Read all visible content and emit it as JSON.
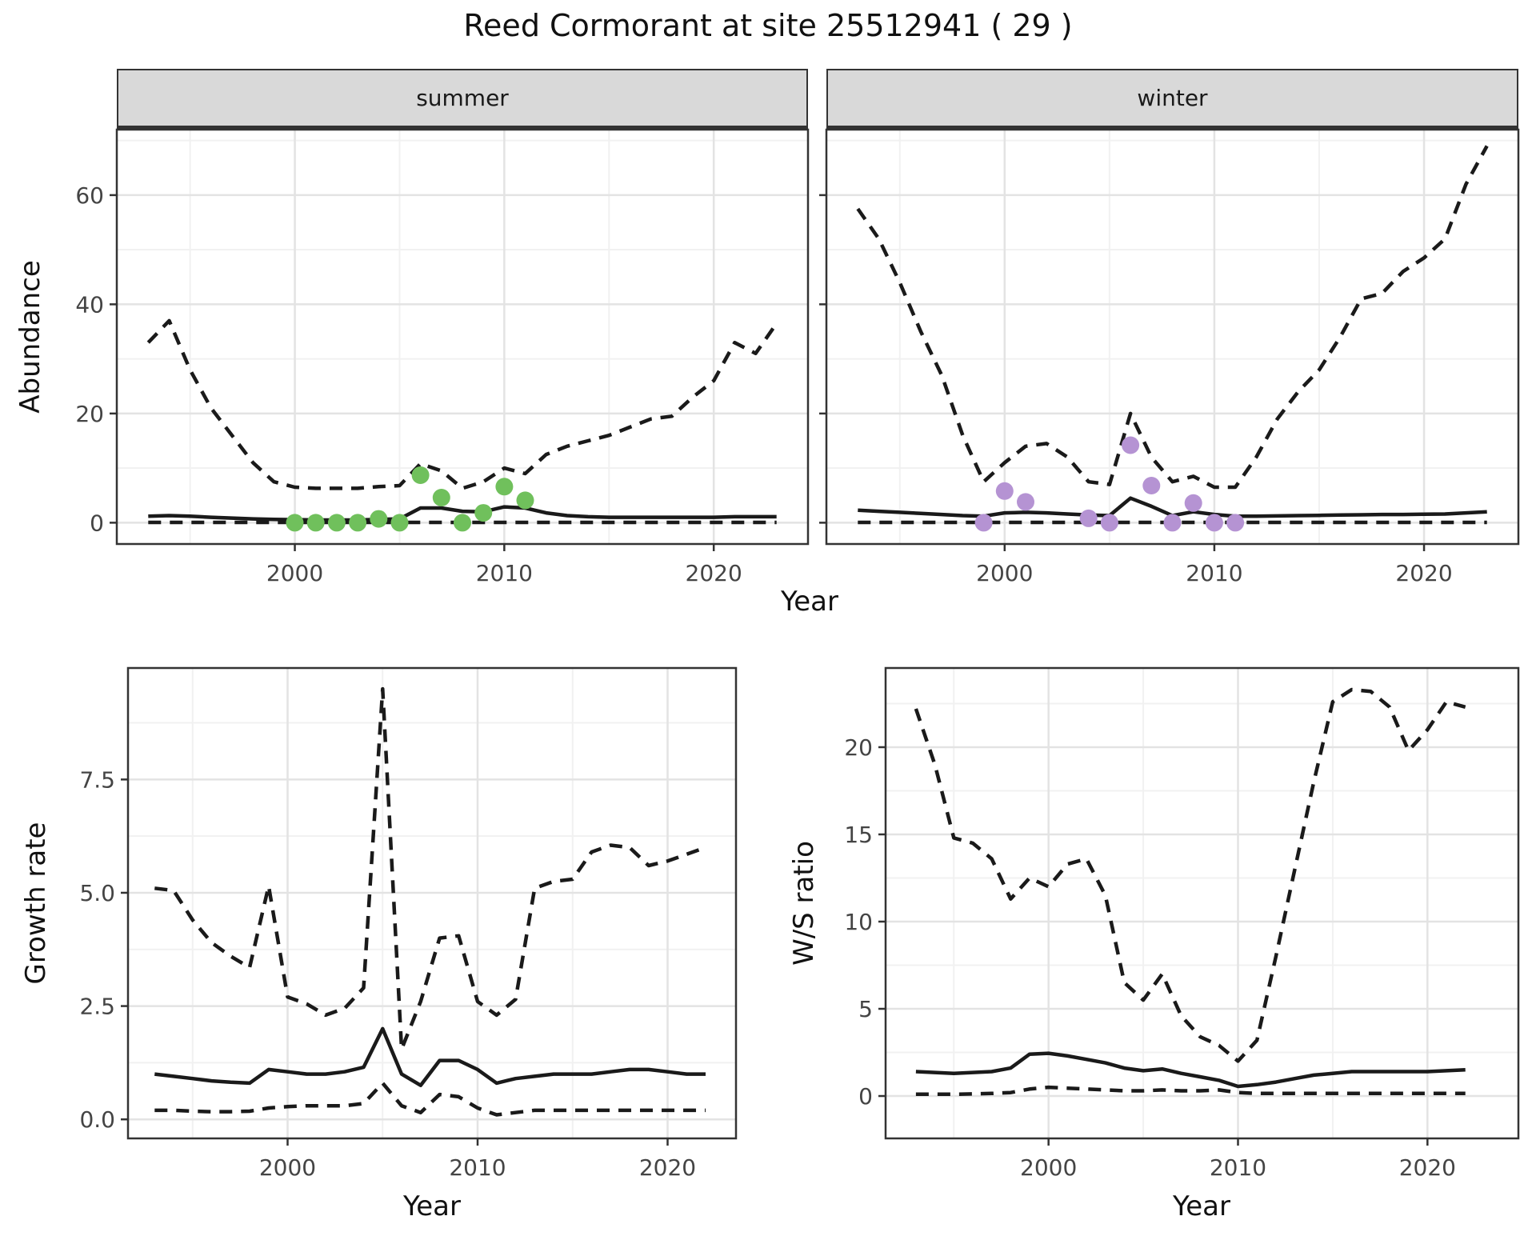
{
  "title": "Reed Cormorant at site 25512941 ( 29 )",
  "labels": {
    "facet_summer": "summer",
    "facet_winter": "winter",
    "top_ylabel": "Abundance",
    "top_xlabel": "Year",
    "growth_ylabel": "Growth rate",
    "growth_xlabel": "Year",
    "ws_ylabel": "W/S ratio",
    "ws_xlabel": "Year"
  },
  "colors": {
    "summer_points": "#70c05c",
    "winter_points": "#b593d3",
    "line": "#1a1a1a",
    "strip_bg": "#d9d9d9",
    "grid_major": "#e3e3e3",
    "grid_minor": "#f1f1f1",
    "panel_border": "#333333",
    "axis_text": "#444444",
    "panel_bg": "#ffffff"
  },
  "chart_data": [
    {
      "id": "abundance_summer",
      "type": "line",
      "facet_label": "summer",
      "ylabel": "Abundance",
      "xlabel": "Year",
      "xlim": [
        1991.5,
        2024.5
      ],
      "ylim": [
        -3.9,
        72
      ],
      "x_ticks": [
        2000,
        2010,
        2020
      ],
      "x_minor": [
        1995,
        2005,
        2015
      ],
      "y_ticks": [
        0,
        20,
        40,
        60
      ],
      "y_tick_labels": [
        "0",
        "20",
        "40",
        "60"
      ],
      "y_minor": [
        10,
        30,
        50,
        70
      ],
      "legend": "off",
      "years": [
        1993,
        1994,
        1995,
        1996,
        1997,
        1998,
        1999,
        2000,
        2001,
        2002,
        2003,
        2004,
        2005,
        2006,
        2007,
        2008,
        2009,
        2010,
        2011,
        2012,
        2013,
        2014,
        2015,
        2016,
        2017,
        2018,
        2019,
        2020,
        2021,
        2022,
        2023
      ],
      "series": [
        {
          "name": "upper_95ci",
          "style": "dashed",
          "values": [
            33,
            37,
            28,
            21,
            16,
            11,
            7.5,
            6.5,
            6.3,
            6.3,
            6.3,
            6.6,
            6.8,
            10.8,
            9.5,
            6.3,
            7.5,
            10,
            9,
            12.5,
            14,
            15,
            16,
            17.5,
            19,
            19.5,
            23,
            26,
            33,
            31,
            36.5
          ]
        },
        {
          "name": "median",
          "style": "solid",
          "values": [
            1.2,
            1.3,
            1.2,
            1.0,
            0.85,
            0.7,
            0.6,
            0.55,
            0.5,
            0.5,
            0.5,
            0.6,
            0.7,
            2.7,
            2.7,
            2.1,
            2.0,
            2.9,
            2.7,
            1.8,
            1.3,
            1.1,
            1.0,
            1.0,
            1.0,
            1.0,
            1.0,
            1.0,
            1.1,
            1.1,
            1.1
          ]
        },
        {
          "name": "lower_95ci",
          "style": "dashed",
          "values": [
            0.05,
            0.05,
            0.05,
            0.05,
            0.05,
            0.05,
            0.05,
            0.05,
            0.05,
            0.05,
            0.05,
            0.05,
            0.05,
            0.05,
            0.05,
            0.05,
            0.05,
            0.05,
            0.05,
            0.05,
            0.05,
            0.05,
            0.05,
            0.05,
            0.05,
            0.05,
            0.05,
            0.05,
            0.05,
            0.05,
            0.05
          ]
        }
      ],
      "points": {
        "name": "observed-summer-counts",
        "color": "#70c05c",
        "data": [
          [
            2000,
            0
          ],
          [
            2001,
            0
          ],
          [
            2002,
            0
          ],
          [
            2003,
            0
          ],
          [
            2004,
            0.7
          ],
          [
            2005,
            0
          ],
          [
            2006,
            8.7
          ],
          [
            2007,
            4.6
          ],
          [
            2008,
            0
          ],
          [
            2009,
            1.8
          ],
          [
            2010,
            6.6
          ],
          [
            2011,
            4.1
          ]
        ]
      }
    },
    {
      "id": "abundance_winter",
      "type": "line",
      "facet_label": "winter",
      "ylabel": "Abundance",
      "xlabel": "Year",
      "xlim": [
        1991.5,
        2024.5
      ],
      "ylim": [
        -3.9,
        72
      ],
      "x_ticks": [
        2000,
        2010,
        2020
      ],
      "x_minor": [
        1995,
        2005,
        2015
      ],
      "y_ticks": [
        0,
        20,
        40,
        60
      ],
      "y_tick_labels": [
        "",
        "",
        "",
        ""
      ],
      "y_minor": [
        10,
        30,
        50,
        70
      ],
      "legend": "off",
      "years": [
        1993,
        1994,
        1995,
        1996,
        1997,
        1998,
        1999,
        2000,
        2001,
        2002,
        2003,
        2004,
        2005,
        2006,
        2007,
        2008,
        2009,
        2010,
        2011,
        2012,
        2013,
        2014,
        2015,
        2016,
        2017,
        2018,
        2019,
        2020,
        2021,
        2022,
        2023
      ],
      "series": [
        {
          "name": "upper_95ci",
          "style": "dashed",
          "values": [
            57.5,
            52,
            44,
            35,
            27,
            16,
            7.5,
            11,
            14,
            14.5,
            12,
            7.5,
            7,
            20,
            12,
            7.5,
            8.5,
            6.5,
            6.5,
            12,
            19,
            24,
            28,
            34,
            41,
            42,
            46,
            48.5,
            52,
            62,
            69
          ]
        },
        {
          "name": "median",
          "style": "solid",
          "values": [
            2.3,
            2.1,
            1.9,
            1.7,
            1.5,
            1.3,
            1.2,
            1.8,
            1.9,
            1.8,
            1.6,
            1.4,
            1.3,
            4.5,
            3.0,
            1.3,
            2.0,
            1.5,
            1.2,
            1.2,
            1.25,
            1.3,
            1.35,
            1.4,
            1.45,
            1.5,
            1.5,
            1.55,
            1.6,
            1.8,
            2.0
          ]
        },
        {
          "name": "lower_95ci",
          "style": "dashed",
          "values": [
            0.05,
            0.05,
            0.05,
            0.05,
            0.05,
            0.05,
            0.05,
            0.05,
            0.05,
            0.05,
            0.05,
            0.05,
            0.05,
            0.05,
            0.05,
            0.05,
            0.05,
            0.05,
            0.05,
            0.05,
            0.05,
            0.05,
            0.05,
            0.05,
            0.05,
            0.05,
            0.05,
            0.05,
            0.05,
            0.05,
            0.05
          ]
        }
      ],
      "points": {
        "name": "observed-winter-counts",
        "color": "#b593d3",
        "data": [
          [
            1999,
            0
          ],
          [
            2000,
            5.8
          ],
          [
            2001,
            3.8
          ],
          [
            2004,
            0.8
          ],
          [
            2005,
            0
          ],
          [
            2006,
            14.2
          ],
          [
            2007,
            6.8
          ],
          [
            2008,
            0
          ],
          [
            2009,
            3.6
          ],
          [
            2010,
            0
          ],
          [
            2011,
            0
          ]
        ]
      }
    },
    {
      "id": "growth_rate",
      "type": "line",
      "facet_label": null,
      "ylabel": "Growth rate",
      "xlabel": "Year",
      "xlim": [
        1991.6,
        2023.6
      ],
      "ylim": [
        -0.42,
        9.96
      ],
      "x_ticks": [
        2000,
        2010,
        2020
      ],
      "x_minor": [
        1995,
        2005,
        2015
      ],
      "y_ticks": [
        0,
        2.5,
        5,
        7.5
      ],
      "y_tick_labels": [
        "0.0",
        "2.5",
        "5.0",
        "7.5"
      ],
      "y_minor": [
        1.25,
        3.75,
        6.25,
        8.75
      ],
      "legend": "off",
      "years": [
        1993,
        1994,
        1995,
        1996,
        1997,
        1998,
        1999,
        2000,
        2001,
        2002,
        2003,
        2004,
        2005,
        2006,
        2007,
        2008,
        2009,
        2010,
        2011,
        2012,
        2013,
        2014,
        2015,
        2016,
        2017,
        2018,
        2019,
        2020,
        2021,
        2022
      ],
      "series": [
        {
          "name": "upper_95ci",
          "style": "dashed",
          "values": [
            5.1,
            5.05,
            4.4,
            3.9,
            3.6,
            3.35,
            5.15,
            2.7,
            2.55,
            2.3,
            2.45,
            2.9,
            9.5,
            1.55,
            2.6,
            4.0,
            4.05,
            2.6,
            2.3,
            2.65,
            5.1,
            5.25,
            5.3,
            5.9,
            6.05,
            6.0,
            5.6,
            5.7,
            5.85,
            6.0
          ]
        },
        {
          "name": "median",
          "style": "solid",
          "values": [
            1.0,
            0.95,
            0.9,
            0.85,
            0.82,
            0.8,
            1.1,
            1.05,
            1.0,
            1.0,
            1.05,
            1.15,
            2.0,
            1.0,
            0.75,
            1.3,
            1.3,
            1.1,
            0.8,
            0.9,
            0.95,
            1.0,
            1.0,
            1.0,
            1.05,
            1.1,
            1.1,
            1.05,
            1.0,
            1.0
          ]
        },
        {
          "name": "lower_95ci",
          "style": "dashed",
          "values": [
            0.2,
            0.2,
            0.18,
            0.17,
            0.17,
            0.18,
            0.25,
            0.28,
            0.3,
            0.3,
            0.3,
            0.35,
            0.8,
            0.3,
            0.15,
            0.55,
            0.5,
            0.25,
            0.1,
            0.15,
            0.2,
            0.2,
            0.2,
            0.2,
            0.2,
            0.2,
            0.2,
            0.2,
            0.2,
            0.2
          ]
        }
      ],
      "points": null
    },
    {
      "id": "ws_ratio",
      "type": "line",
      "facet_label": null,
      "ylabel": "W/S ratio",
      "xlabel": "Year",
      "xlim": [
        1991.4,
        2024.8
      ],
      "ylim": [
        -2.43,
        24.54
      ],
      "x_ticks": [
        2000,
        2010,
        2020
      ],
      "x_minor": [
        1995,
        2005,
        2015
      ],
      "y_ticks": [
        0,
        5,
        10,
        15,
        20
      ],
      "y_tick_labels": [
        "0",
        "5",
        "10",
        "15",
        "20"
      ],
      "y_minor": [
        2.5,
        7.5,
        12.5,
        17.5,
        22.5
      ],
      "legend": "off",
      "years": [
        1993,
        1994,
        1995,
        1996,
        1997,
        1998,
        1999,
        2000,
        2001,
        2002,
        2003,
        2004,
        2005,
        2006,
        2007,
        2008,
        2009,
        2010,
        2011,
        2012,
        2013,
        2014,
        2015,
        2016,
        2017,
        2018,
        2019,
        2020,
        2021,
        2022
      ],
      "series": [
        {
          "name": "upper_95ci",
          "style": "dashed",
          "values": [
            22.2,
            19,
            14.8,
            14.5,
            13.6,
            11.3,
            12.5,
            12.0,
            13.3,
            13.6,
            11.5,
            6.5,
            5.5,
            7.0,
            4.6,
            3.4,
            2.9,
            2.0,
            3.2,
            8,
            13,
            18,
            22.6,
            23.3,
            23.2,
            22.3,
            19.8,
            21,
            22.6,
            22.3
          ]
        },
        {
          "name": "median",
          "style": "solid",
          "values": [
            1.4,
            1.35,
            1.3,
            1.35,
            1.4,
            1.6,
            2.4,
            2.45,
            2.3,
            2.1,
            1.9,
            1.6,
            1.45,
            1.55,
            1.3,
            1.1,
            0.9,
            0.55,
            0.65,
            0.8,
            1.0,
            1.2,
            1.3,
            1.4,
            1.4,
            1.4,
            1.4,
            1.4,
            1.45,
            1.5
          ]
        },
        {
          "name": "lower_95ci",
          "style": "dashed",
          "values": [
            0.1,
            0.1,
            0.1,
            0.12,
            0.15,
            0.2,
            0.4,
            0.5,
            0.45,
            0.4,
            0.35,
            0.3,
            0.3,
            0.35,
            0.3,
            0.3,
            0.35,
            0.2,
            0.15,
            0.15,
            0.15,
            0.15,
            0.15,
            0.15,
            0.15,
            0.15,
            0.15,
            0.15,
            0.15,
            0.15
          ]
        }
      ],
      "points": null
    }
  ]
}
